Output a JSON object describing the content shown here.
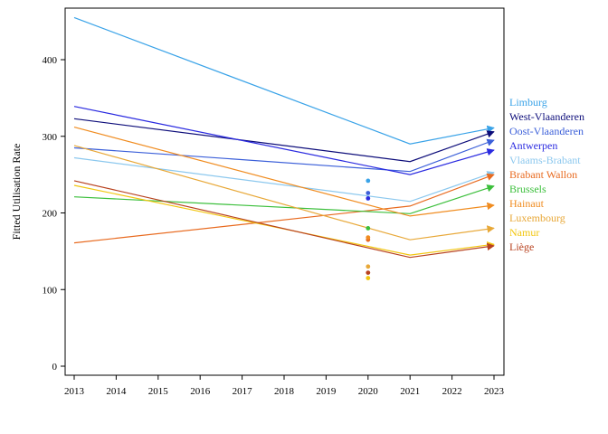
{
  "chart_data": {
    "type": "line",
    "title": "",
    "xlabel": "",
    "ylabel": "Fitted Utilisation Rate",
    "xlim": [
      2013,
      2023
    ],
    "ylim": [
      -10,
      460
    ],
    "x_ticks": [
      "2013",
      "2014",
      "2015",
      "2016",
      "2017",
      "2018",
      "2019",
      "2020",
      "2021",
      "2022",
      "2023"
    ],
    "y_ticks": [
      0,
      100,
      200,
      300,
      400
    ],
    "x": [
      2013,
      2021,
      2023
    ],
    "grid": false,
    "legend": "right, labels at series endpoints",
    "series": [
      {
        "name": "Limburg",
        "color": "#3aa3e8",
        "values": [
          455,
          290,
          311
        ],
        "point2020": 242
      },
      {
        "name": "West-Vlaanderen",
        "color": "#0d0d7a",
        "values": [
          323,
          267,
          306
        ],
        "point2020": null
      },
      {
        "name": "Oost-Vlaanderen",
        "color": "#3b5fd9",
        "values": [
          285,
          254,
          295
        ],
        "point2020": 226
      },
      {
        "name": "Antwerpen",
        "color": "#2a2ae0",
        "values": [
          339,
          250,
          282
        ],
        "point2020": 219
      },
      {
        "name": "Vlaams-Brabant",
        "color": "#8cc8ee",
        "values": [
          272,
          215,
          253
        ],
        "point2020": null
      },
      {
        "name": "Brabant Wallon",
        "color": "#e86a1f",
        "values": [
          161,
          209,
          250
        ],
        "point2020": 165
      },
      {
        "name": "Brussels",
        "color": "#3bbf3b",
        "values": [
          221,
          199,
          235
        ],
        "point2020": 180
      },
      {
        "name": "Hainaut",
        "color": "#f08c20",
        "values": [
          312,
          196,
          210
        ],
        "point2020": 168
      },
      {
        "name": "Luxembourg",
        "color": "#e8a838",
        "values": [
          288,
          165,
          180
        ],
        "point2020": 130
      },
      {
        "name": "Namur",
        "color": "#f2c60f",
        "values": [
          236,
          145,
          159
        ],
        "point2020": 115
      },
      {
        "name": "Liège",
        "color": "#b8421f",
        "values": [
          242,
          142,
          157
        ],
        "point2020": 122
      }
    ]
  }
}
